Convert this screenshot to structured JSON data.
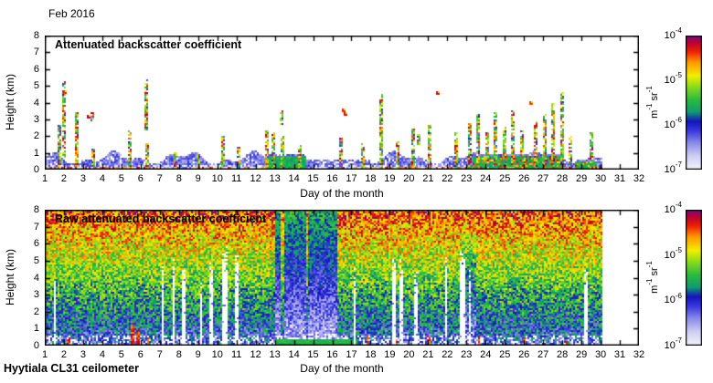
{
  "page": {
    "date_label": "Feb 2016",
    "footer_label": "Hyytiala CL31 ceilometer",
    "background_color": "#ffffff"
  },
  "chart_data": [
    {
      "type": "heatmap",
      "panel": "top",
      "title": "Attenuated backscatter coefficient",
      "xlabel": "Day of the month",
      "ylabel": "Height (km)",
      "xlim": [
        1,
        32
      ],
      "ylim": [
        0,
        8
      ],
      "xticks": [
        1,
        2,
        3,
        4,
        5,
        6,
        7,
        8,
        9,
        10,
        11,
        12,
        13,
        14,
        15,
        16,
        17,
        18,
        19,
        20,
        21,
        22,
        23,
        24,
        25,
        26,
        27,
        28,
        29,
        30,
        31,
        32
      ],
      "yticks": [
        0,
        1,
        2,
        3,
        4,
        5,
        6,
        7,
        8
      ],
      "grid": false,
      "data_end_day": 30,
      "background": "white below display threshold",
      "boundary_layer_top_km_range": [
        0.4,
        1.0
      ],
      "warm_surface_day_segments": [
        [
          1,
          7.3
        ],
        [
          9,
          13
        ],
        [
          17,
          24.5
        ],
        [
          27.5,
          30
        ]
      ],
      "green_surface_patches": [
        [
          12.6,
          14.6,
          0.85
        ],
        [
          23.3,
          28.0,
          0.9
        ],
        [
          28.6,
          29.8,
          0.55
        ]
      ],
      "cloud_spikes_day_basekm_topkm": [
        [
          1.75,
          0,
          2.6
        ],
        [
          2.0,
          0.8,
          5.2
        ],
        [
          2.65,
          0,
          3.4
        ],
        [
          3.5,
          2.9,
          3.4
        ],
        [
          3.55,
          0,
          1.2
        ],
        [
          5.45,
          0,
          2.3
        ],
        [
          6.3,
          2.4,
          5.3
        ],
        [
          6.35,
          0,
          1.5
        ],
        [
          7.8,
          0,
          1.1
        ],
        [
          9.0,
          0,
          0.9
        ],
        [
          10.3,
          0,
          2.0
        ],
        [
          11.1,
          0,
          1.3
        ],
        [
          12.6,
          0,
          2.3
        ],
        [
          12.9,
          0,
          2.2
        ],
        [
          13.35,
          2.7,
          3.5
        ],
        [
          13.4,
          0,
          2.0
        ],
        [
          14.3,
          0,
          1.4
        ],
        [
          16.45,
          0,
          1.9
        ],
        [
          17.6,
          0,
          1.5
        ],
        [
          18.55,
          0,
          4.5
        ],
        [
          19.4,
          0,
          1.6
        ],
        [
          20.2,
          0,
          2.4
        ],
        [
          20.5,
          1.5,
          2.1
        ],
        [
          21.1,
          0,
          2.6
        ],
        [
          22.45,
          0,
          2.2
        ],
        [
          23.2,
          0,
          2.7
        ],
        [
          23.6,
          0,
          3.3
        ],
        [
          24.1,
          0,
          2.2
        ],
        [
          24.5,
          0,
          3.4
        ],
        [
          25.0,
          0,
          2.5
        ],
        [
          25.4,
          0,
          3.5
        ],
        [
          25.9,
          0,
          2.3
        ],
        [
          26.6,
          0,
          2.8
        ],
        [
          27.1,
          0,
          3.3
        ],
        [
          27.5,
          0,
          3.9
        ],
        [
          28.0,
          0,
          4.6
        ],
        [
          28.4,
          0,
          2.0
        ],
        [
          29.5,
          0,
          2.2
        ]
      ],
      "isolated_cloud_dots_day_km": [
        [
          2.05,
          4.65
        ],
        [
          3.3,
          3.15
        ],
        [
          16.7,
          3.3
        ],
        [
          21.5,
          4.55
        ],
        [
          26.35,
          4.0
        ],
        [
          16.6,
          3.55
        ]
      ]
    },
    {
      "type": "heatmap",
      "panel": "bottom",
      "title": "Raw attenuated backscatter coefficient",
      "xlabel": "Day of the month",
      "ylabel": "Height (km)",
      "xlim": [
        1,
        32
      ],
      "ylim": [
        0,
        8
      ],
      "xticks": [
        1,
        2,
        3,
        4,
        5,
        6,
        7,
        8,
        9,
        10,
        11,
        12,
        13,
        14,
        15,
        16,
        17,
        18,
        19,
        20,
        21,
        22,
        23,
        24,
        25,
        26,
        27,
        28,
        29,
        30,
        31,
        32
      ],
      "yticks": [
        0,
        1,
        2,
        3,
        4,
        5,
        6,
        7,
        8
      ],
      "grid": false,
      "data_end_day": 30,
      "gradient_description": "red/orange noise aloft fading through yellow-green to blue and pale white near surface",
      "quiet_blue_band_days": [
        13.0,
        16.2
      ],
      "warm_streaks_in_band_days": [
        13.35,
        14.65
      ],
      "weak_blue_band_days": [
        22.7,
        23.5
      ],
      "green_surface_patch": [
        13.0,
        17.3,
        0.45
      ],
      "missing_data_columns_day_topkm_width": [
        [
          1.45,
          4.0,
          0.08
        ],
        [
          7.1,
          4.5,
          0.14
        ],
        [
          7.65,
          4.8,
          0.12
        ],
        [
          8.2,
          4.4,
          0.16
        ],
        [
          9.1,
          3.6,
          0.12
        ],
        [
          9.65,
          4.6,
          0.14
        ],
        [
          10.35,
          5.3,
          0.2
        ],
        [
          11.0,
          5.4,
          0.22
        ],
        [
          17.1,
          4.2,
          0.1
        ],
        [
          19.15,
          5.0,
          0.22
        ],
        [
          19.55,
          4.6,
          0.14
        ],
        [
          20.3,
          4.3,
          0.16
        ],
        [
          21.9,
          5.2,
          0.16
        ],
        [
          22.75,
          5.4,
          0.2
        ],
        [
          23.1,
          4.4,
          0.12
        ],
        [
          29.2,
          4.2,
          0.14
        ]
      ],
      "surface_flames_day_topkm": [
        [
          2.2,
          0.5
        ],
        [
          5.55,
          1.3
        ],
        [
          5.8,
          1.1
        ],
        [
          6.35,
          0.7
        ],
        [
          17.8,
          0.6
        ],
        [
          19.3,
          0.5
        ],
        [
          21.0,
          0.6
        ],
        [
          23.6,
          0.8
        ],
        [
          26.0,
          0.5
        ],
        [
          28.2,
          0.4
        ]
      ]
    }
  ],
  "colorbar": {
    "scale": "log10",
    "range": [
      "1e-7",
      "1e-4"
    ],
    "ticks": [
      {
        "base": "10",
        "exp": "-4"
      },
      {
        "base": "10",
        "exp": "-5"
      },
      {
        "base": "10",
        "exp": "-6"
      },
      {
        "base": "10",
        "exp": "-7"
      }
    ],
    "unit_parts": [
      {
        "base": "m",
        "exp": "-1"
      },
      {
        "base": "sr",
        "exp": "-1"
      }
    ],
    "gradient_stops": [
      {
        "t": 0.0,
        "c": "#F4F4FD"
      },
      {
        "t": 0.1,
        "c": "#CFCFF4"
      },
      {
        "t": 0.2,
        "c": "#8A8AE9"
      },
      {
        "t": 0.29,
        "c": "#3838DD"
      },
      {
        "t": 0.36,
        "c": "#1414BE"
      },
      {
        "t": 0.43,
        "c": "#129B74"
      },
      {
        "t": 0.52,
        "c": "#27BC3F"
      },
      {
        "t": 0.62,
        "c": "#8CDC1E"
      },
      {
        "t": 0.7,
        "c": "#F2EE00"
      },
      {
        "t": 0.8,
        "c": "#FF9900"
      },
      {
        "t": 0.88,
        "c": "#EC2200"
      },
      {
        "t": 0.95,
        "c": "#BB0033"
      },
      {
        "t": 1.0,
        "c": "#740A8C"
      }
    ]
  }
}
